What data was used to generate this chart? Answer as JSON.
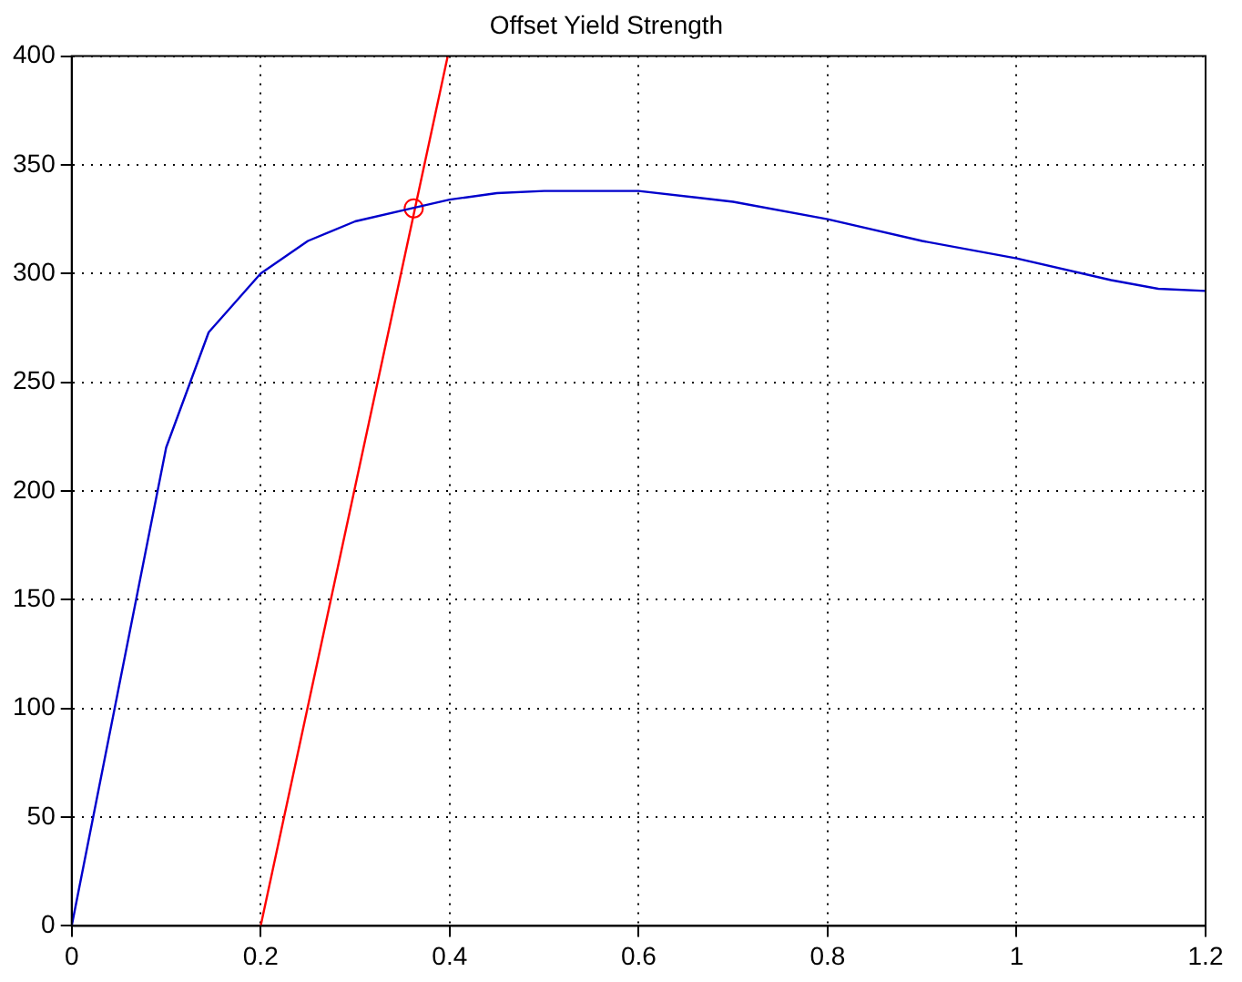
{
  "chart_data": {
    "type": "line",
    "title": "Offset Yield Strength",
    "xlim": [
      0,
      1.2
    ],
    "ylim": [
      0,
      400
    ],
    "xticks": [
      0,
      0.2,
      0.4,
      0.6,
      0.8,
      1,
      1.2
    ],
    "yticks": [
      0,
      50,
      100,
      150,
      200,
      250,
      300,
      350,
      400
    ],
    "grid": true,
    "legend": false,
    "marker": "none",
    "line_style": "solid",
    "series": [
      {
        "color": "#0000cc",
        "x": [
          0,
          0.05,
          0.1,
          0.145,
          0.2,
          0.25,
          0.3,
          0.36,
          0.4,
          0.45,
          0.5,
          0.55,
          0.6,
          0.7,
          0.8,
          0.9,
          1.0,
          1.1,
          1.15,
          1.2
        ],
        "values": [
          0,
          110,
          220,
          273,
          300,
          315,
          324,
          330,
          334,
          337,
          338,
          338,
          338,
          333,
          325,
          315,
          307,
          297,
          293,
          292
        ]
      },
      {
        "type": "line",
        "color": "#ff0000",
        "x": [
          0.2,
          0.398
        ],
        "values": [
          0,
          400
        ]
      },
      {
        "type": "scatter",
        "color": "#ff0000",
        "marker": "circle",
        "x": [
          0.362
        ],
        "values": [
          330
        ]
      }
    ]
  }
}
